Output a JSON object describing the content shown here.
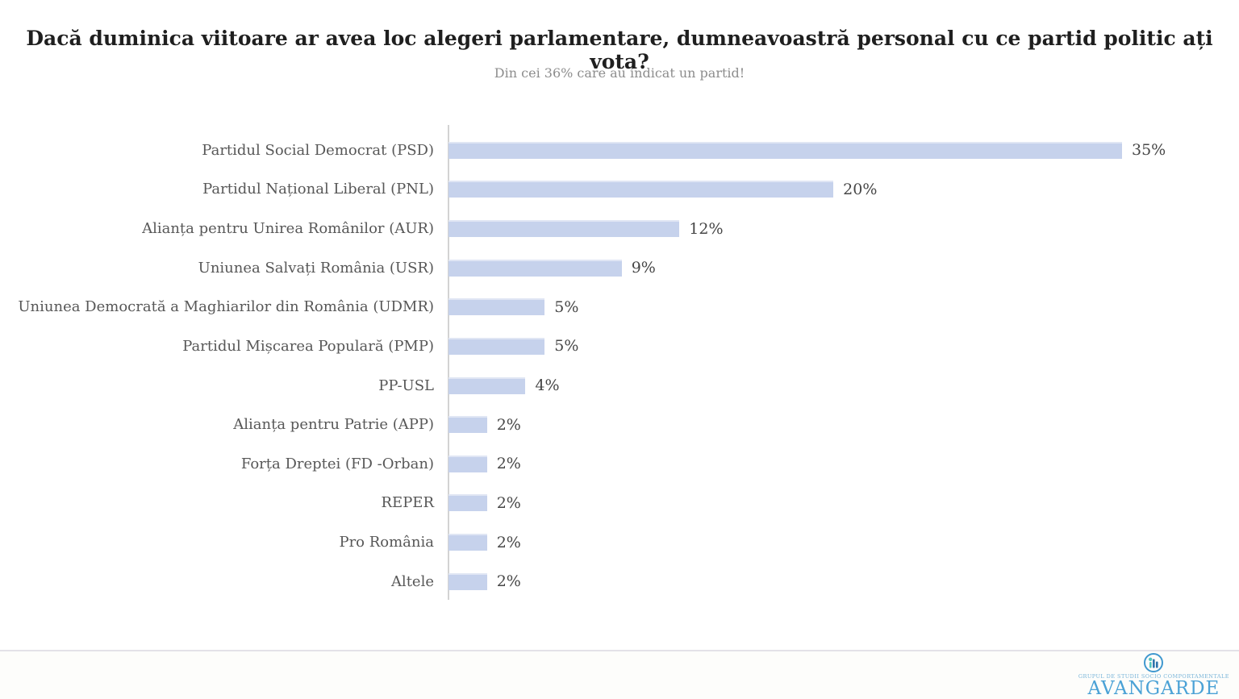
{
  "chart_data": {
    "type": "bar",
    "orientation": "horizontal",
    "title": "Dacă duminica viitoare ar avea loc alegeri parlamentare, dumneavoastră personal cu ce partid politic ați vota?",
    "subtitle": "Din cei 36% care au indicat un partid!",
    "categories": [
      "Partidul Social Democrat (PSD)",
      "Partidul Național Liberal (PNL)",
      "Alianța pentru Unirea Românilor (AUR)",
      "Uniunea Salvați România (USR)",
      "Uniunea Democrată a Maghiarilor din România (UDMR)",
      "Partidul Mișcarea Populară (PMP)",
      "PP-USL",
      "Alianța pentru Patrie (APP)",
      "Forța Dreptei (FD -Orban)",
      "REPER",
      "Pro România",
      "Altele"
    ],
    "values": [
      35,
      20,
      12,
      9,
      5,
      5,
      4,
      2,
      2,
      2,
      2,
      2
    ],
    "value_labels": [
      "35%",
      "20%",
      "12%",
      "9%",
      "5%",
      "5%",
      "4%",
      "2%",
      "2%",
      "2%",
      "2%",
      "2%"
    ],
    "xlabel": "",
    "ylabel": "",
    "xlim": [
      0,
      36
    ],
    "grid": false,
    "legend": false,
    "bar_color": "#c6d2ec",
    "label_color": "#575757",
    "value_color": "#474747",
    "axis_color": "#d3d3d3"
  },
  "footer": {
    "logo": {
      "tagline": "GRUPUL DE STUDII SOCIO COMPORTAMENTALE",
      "wordmark": "AVANGARDE",
      "brand_color": "#4ba2d6",
      "icon": "people-bars-circle-icon"
    }
  }
}
